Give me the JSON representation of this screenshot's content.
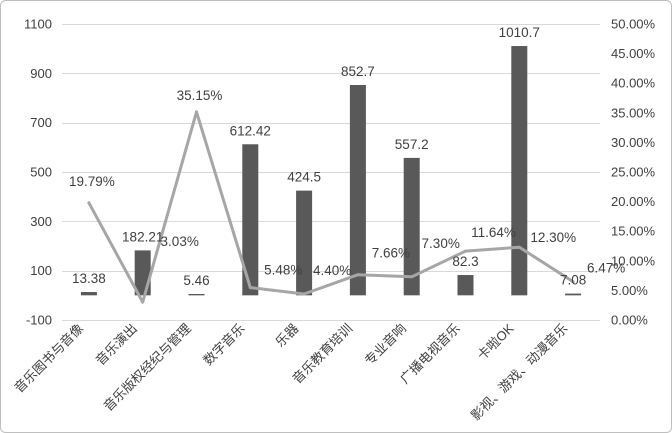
{
  "chart_data": {
    "type": "bar",
    "categories": [
      "音乐图书与音像",
      "音乐演出",
      "音乐版权经纪与管理",
      "数字音乐",
      "乐器",
      "音乐教育培训",
      "专业音响",
      "广播电视音乐",
      "卡啦OK",
      "影视、游戏、动漫音乐"
    ],
    "series": [
      {
        "type": "bar",
        "values": [
          13.38,
          182.21,
          5.46,
          612.42,
          424.5,
          852.7,
          557.2,
          82.3,
          1010.7,
          7.08
        ]
      },
      {
        "type": "line",
        "secondary_axis": true,
        "values": [
          19.79,
          3.03,
          35.15,
          5.48,
          4.4,
          7.66,
          7.3,
          11.64,
          12.3,
          6.47
        ],
        "data_labels": [
          "19.79%",
          "3.03%",
          "35.15%",
          "5.48%",
          "4.40%",
          "7.66%",
          "7.30%",
          "11.64%",
          "12.30%",
          "6.47%"
        ]
      }
    ],
    "y_left": {
      "range": [
        -100,
        1100
      ],
      "ticks": [
        1100,
        900,
        700,
        500,
        300,
        100,
        -100
      ]
    },
    "y_right": {
      "range": [
        0,
        50
      ],
      "ticks": [
        50,
        45,
        40,
        35,
        30,
        25,
        20,
        15,
        10,
        5,
        0
      ],
      "tick_labels": [
        "50.00%",
        "45.00%",
        "40.00%",
        "35.00%",
        "30.00%",
        "25.00%",
        "20.00%",
        "15.00%",
        "10.00%",
        "5.00%",
        "0.00%"
      ]
    },
    "grid": true,
    "legend": false,
    "colors": {
      "bar": "#595959",
      "line": "#a6a6a6",
      "grid": "#d9d9d9",
      "text": "#404040",
      "frame": "#bfbfbf"
    }
  }
}
